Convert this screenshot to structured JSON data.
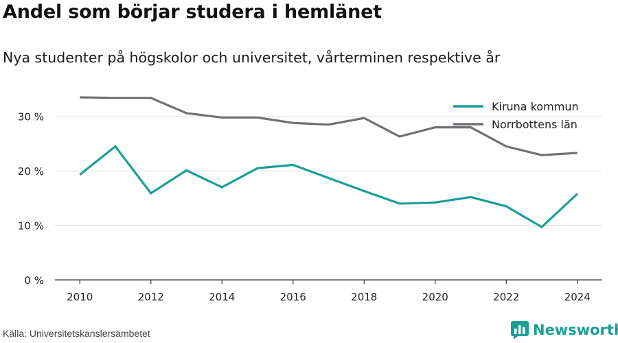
{
  "header": {
    "title": "Andel som börjar studera i hemlänet",
    "subtitle": "Nya studenter på högskolor och universitet, vårterminen respektive år"
  },
  "footer": {
    "source": "Källa: Universitetskanslersämbetet",
    "brand": "Newsworthy",
    "brand_icon": "bar-chart-logo-icon"
  },
  "colors": {
    "kiruna": "#1a9e96",
    "norrbotten": "#707075",
    "grid": "#e2e2e2",
    "axis": "#333333"
  },
  "chart_data": {
    "type": "line",
    "title": "Andel som börjar studera i hemlänet",
    "subtitle": "Nya studenter på högskolor och universitet, vårterminen respektive år",
    "xlabel": "",
    "ylabel": "",
    "x": [
      2010,
      2011,
      2012,
      2013,
      2014,
      2015,
      2016,
      2017,
      2018,
      2019,
      2020,
      2021,
      2022,
      2023,
      2024
    ],
    "xticks": [
      2010,
      2012,
      2014,
      2016,
      2018,
      2020,
      2022,
      2024
    ],
    "xtick_labels": [
      "2010",
      "2012",
      "2014",
      "2016",
      "2018",
      "2020",
      "2022",
      "2024"
    ],
    "ylim": [
      0,
      35
    ],
    "yticks": [
      0,
      10,
      20,
      30
    ],
    "ytick_labels": [
      "0 %",
      "10 %",
      "20 %",
      "30 %"
    ],
    "grid": true,
    "legend_position": "top-right",
    "series": [
      {
        "name": "Kiruna kommun",
        "color": "#1a9e96",
        "values": [
          19.3,
          24.5,
          15.9,
          20.1,
          17.0,
          20.5,
          21.1,
          18.7,
          16.3,
          14.0,
          14.2,
          15.2,
          13.5,
          9.7,
          15.8
        ]
      },
      {
        "name": "Norrbottens län",
        "color": "#707075",
        "values": [
          33.5,
          33.4,
          33.4,
          30.6,
          29.8,
          29.8,
          28.8,
          28.5,
          29.7,
          26.3,
          28.0,
          28.0,
          24.5,
          22.9,
          23.3
        ]
      }
    ]
  }
}
